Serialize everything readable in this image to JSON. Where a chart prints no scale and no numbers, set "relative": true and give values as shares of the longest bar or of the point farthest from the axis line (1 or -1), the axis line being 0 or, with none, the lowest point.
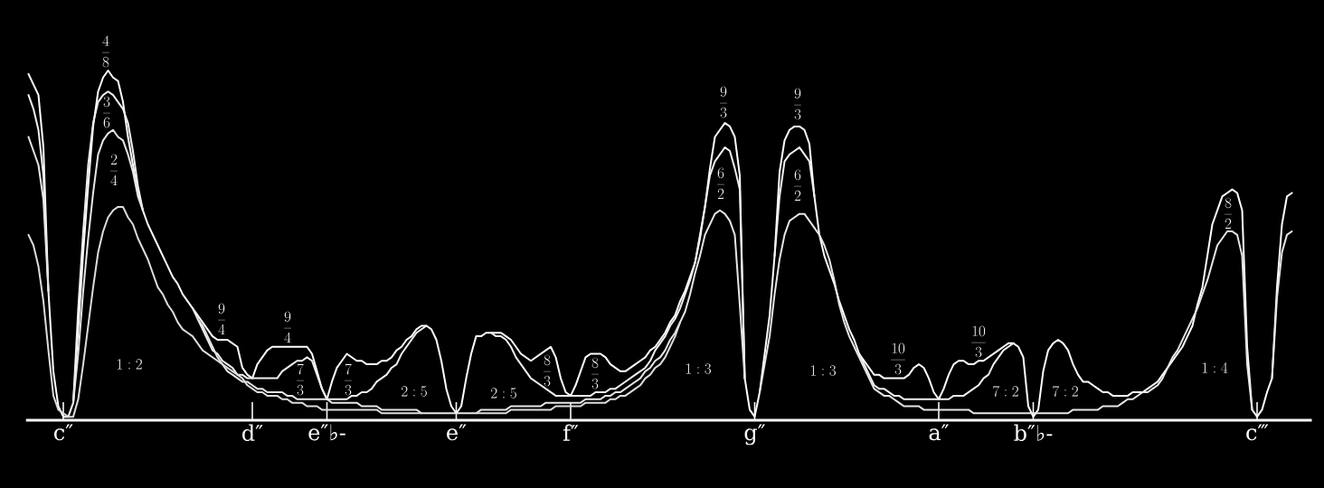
{
  "chart_data": {
    "type": "line",
    "relative": true,
    "marker": "none",
    "line_style": "solid",
    "categories": [
      null,
      null,
      null,
      null,
      null,
      null,
      null,
      "c″",
      null,
      null,
      null,
      null,
      null,
      null,
      null,
      null,
      null,
      null,
      null,
      null,
      null,
      null,
      null,
      null,
      null,
      null,
      null,
      null,
      null,
      null,
      null,
      null,
      null,
      null,
      null,
      null,
      null,
      null,
      null,
      null,
      null,
      null,
      null,
      null,
      null,
      "d″",
      null,
      null,
      null,
      null,
      null,
      null,
      null,
      null,
      null,
      null,
      null,
      null,
      null,
      null,
      "e″♭-",
      null,
      null,
      null,
      null,
      null,
      null,
      null,
      null,
      null,
      null,
      null,
      null,
      null,
      null,
      null,
      null,
      null,
      null,
      null,
      null,
      null,
      null,
      null,
      null,
      null,
      "e″",
      null,
      null,
      null,
      null,
      null,
      null,
      null,
      null,
      null,
      null,
      null,
      null,
      null,
      null,
      null,
      null,
      null,
      null,
      null,
      null,
      null,
      null,
      "f″",
      null,
      null,
      null,
      null,
      null,
      null,
      null,
      null,
      null,
      null,
      null,
      null,
      null,
      null,
      null,
      null,
      null,
      null,
      null,
      null,
      null,
      null,
      null,
      null,
      null,
      null,
      null,
      null,
      null,
      null,
      null,
      null,
      null,
      null,
      null,
      null,
      "g″",
      null,
      null,
      null,
      null,
      null,
      null,
      null,
      null,
      null,
      null,
      null,
      null,
      null,
      null,
      null,
      null,
      null,
      null,
      null,
      null,
      null,
      null,
      null,
      null,
      null,
      null,
      null,
      null,
      null,
      null,
      null,
      null,
      null,
      null,
      null,
      null,
      "a″",
      null,
      null,
      null,
      null,
      null,
      null,
      null,
      null,
      null,
      null,
      null,
      null,
      null,
      null,
      null,
      null,
      null,
      null,
      "b″♭-",
      null,
      null,
      null,
      null,
      null,
      null,
      null,
      null,
      null,
      null,
      null,
      null,
      null,
      null,
      null,
      null,
      null,
      null,
      null,
      null,
      null,
      null,
      null,
      null,
      null,
      null,
      null,
      null,
      null,
      null,
      null,
      null,
      null,
      null,
      null,
      null,
      null,
      null,
      null,
      null,
      null,
      null,
      null,
      null,
      "c‴",
      null,
      null,
      null,
      null,
      null,
      null,
      null
    ],
    "series": [
      {
        "color": "#ffffff",
        "values": [
          0.99,
          0.96,
          0.93,
          0.78,
          0.37,
          0.14,
          0.04,
          0.01,
          0.01,
          0.05,
          0.26,
          0.48,
          0.67,
          0.84,
          0.94,
          0.98,
          1.0,
          0.98,
          0.97,
          0.91,
          0.81,
          0.73,
          0.65,
          0.6,
          0.56,
          0.53,
          0.5,
          0.47,
          0.44,
          0.41,
          0.39,
          0.36,
          0.34,
          0.32,
          0.3,
          0.28,
          0.26,
          0.24,
          0.23,
          0.23,
          0.23,
          0.22,
          0.21,
          0.15,
          0.13,
          0.12,
          0.16,
          0.18,
          0.2,
          0.21,
          0.21,
          0.21,
          0.21,
          0.21,
          0.21,
          0.21,
          0.21,
          0.19,
          0.14,
          0.09,
          0.06,
          0.11,
          0.15,
          0.17,
          0.19,
          0.18,
          0.17,
          0.17,
          0.16,
          0.16,
          0.16,
          0.17,
          0.17,
          0.18,
          0.2,
          0.21,
          0.23,
          0.24,
          0.26,
          0.27,
          0.27,
          0.26,
          0.23,
          0.17,
          0.09,
          0.04,
          0.02,
          0.04,
          0.12,
          0.19,
          0.24,
          0.24,
          0.25,
          0.25,
          0.25,
          0.25,
          0.24,
          0.23,
          0.21,
          0.19,
          0.18,
          0.17,
          0.18,
          0.19,
          0.2,
          0.21,
          0.18,
          0.12,
          0.08,
          0.07,
          0.1,
          0.14,
          0.18,
          0.19,
          0.19,
          0.19,
          0.18,
          0.16,
          0.15,
          0.14,
          0.14,
          0.15,
          0.16,
          0.17,
          0.18,
          0.2,
          0.21,
          0.23,
          0.25,
          0.28,
          0.3,
          0.34,
          0.37,
          0.41,
          0.45,
          0.52,
          0.61,
          0.72,
          0.81,
          0.83,
          0.85,
          0.84,
          0.81,
          0.7,
          0.12,
          0.03,
          0.01,
          0.08,
          0.19,
          0.3,
          0.47,
          0.71,
          0.8,
          0.83,
          0.84,
          0.84,
          0.83,
          0.79,
          0.64,
          0.53,
          0.47,
          0.43,
          0.39,
          0.34,
          0.3,
          0.26,
          0.23,
          0.19,
          0.17,
          0.15,
          0.13,
          0.13,
          0.12,
          0.12,
          0.12,
          0.12,
          0.12,
          0.13,
          0.15,
          0.16,
          0.15,
          0.12,
          0.08,
          0.06,
          0.09,
          0.13,
          0.16,
          0.17,
          0.17,
          0.16,
          0.16,
          0.17,
          0.17,
          0.18,
          0.19,
          0.2,
          0.21,
          0.22,
          0.22,
          0.21,
          0.18,
          0.04,
          0.01,
          0.03,
          0.14,
          0.2,
          0.22,
          0.23,
          0.22,
          0.2,
          0.16,
          0.13,
          0.11,
          0.11,
          0.1,
          0.09,
          0.08,
          0.08,
          0.07,
          0.07,
          0.07,
          0.07,
          0.08,
          0.08,
          0.08,
          0.09,
          0.1,
          0.11,
          0.13,
          0.15,
          0.17,
          0.19,
          0.21,
          0.24,
          0.27,
          0.33,
          0.38,
          0.47,
          0.56,
          0.6,
          0.64,
          0.65,
          0.66,
          0.65,
          0.6,
          0.21,
          0.03,
          0.01,
          0.03,
          0.08,
          0.12,
          0.38,
          0.56,
          0.64,
          0.65
        ]
      },
      {
        "color": "#f0f0f0",
        "values": [
          0.93,
          0.89,
          0.83,
          0.7,
          0.37,
          null,
          null,
          null,
          null,
          0.05,
          0.32,
          0.54,
          0.73,
          0.85,
          0.91,
          0.93,
          0.94,
          0.93,
          0.91,
          0.89,
          0.85,
          0.77,
          0.67,
          0.6,
          null,
          null,
          null,
          null,
          null,
          null,
          null,
          null,
          null,
          0.32,
          0.29,
          0.26,
          0.23,
          0.2,
          0.19,
          0.17,
          0.16,
          0.15,
          0.13,
          0.13,
          0.12,
          0.12,
          0.12,
          0.12,
          0.12,
          0.12,
          0.12,
          0.14,
          0.15,
          0.16,
          0.17,
          0.17,
          0.18,
          0.17,
          0.13,
          0.09,
          0.06,
          0.06,
          0.06,
          0.06,
          0.06,
          0.07,
          0.07,
          0.08,
          0.08,
          0.09,
          0.11,
          0.12,
          0.13,
          0.15,
          0.16,
          0.19,
          0.21,
          0.23,
          0.25,
          0.26,
          0.27,
          null,
          null,
          null,
          null,
          null,
          null,
          null,
          null,
          null,
          null,
          null,
          null,
          0.25,
          0.24,
          0.24,
          0.23,
          0.21,
          0.18,
          0.16,
          0.14,
          0.12,
          0.11,
          0.1,
          0.09,
          0.08,
          0.07,
          0.07,
          0.07,
          0.07,
          0.07,
          0.07,
          0.07,
          0.07,
          0.08,
          0.08,
          0.08,
          0.09,
          0.09,
          0.1,
          0.11,
          0.12,
          0.13,
          0.14,
          0.15,
          0.17,
          0.2,
          0.22,
          0.24,
          0.27,
          0.29,
          0.32,
          0.36,
          0.4,
          0.45,
          0.53,
          0.61,
          0.7,
          0.74,
          0.76,
          0.78,
          0.77,
          0.72,
          0.66,
          0.12,
          null,
          null,
          null,
          null,
          null,
          0.47,
          0.64,
          0.74,
          0.76,
          0.77,
          0.78,
          0.76,
          0.74,
          0.64,
          null,
          null,
          null,
          null,
          null,
          null,
          null,
          null,
          0.19,
          0.16,
          0.13,
          0.1,
          0.09,
          0.09,
          0.08,
          0.07,
          0.07,
          0.06,
          0.06,
          0.06,
          0.06,
          0.06,
          0.06,
          0.06,
          0.06,
          0.06,
          0.06,
          0.07,
          0.07,
          0.07,
          0.08,
          0.09,
          0.1,
          0.12,
          0.13,
          0.16,
          0.18,
          0.2,
          0.21,
          0.22,
          null,
          null,
          null,
          null,
          null,
          null,
          null,
          null,
          null,
          null,
          null,
          null,
          null,
          null,
          null,
          null,
          null,
          null,
          null,
          null,
          null,
          null,
          null,
          null,
          null,
          null,
          null,
          null,
          null,
          null,
          null,
          null,
          null,
          null,
          null,
          null,
          null,
          null,
          null,
          null,
          null,
          null,
          null,
          null,
          null,
          null,
          null,
          null,
          null,
          null,
          null,
          null,
          null,
          null,
          null,
          null
        ]
      },
      {
        "color": "#e6e6e6",
        "values": [
          0.81,
          0.77,
          0.73,
          0.63,
          0.37,
          null,
          null,
          null,
          null,
          0.05,
          0.19,
          0.37,
          0.52,
          0.65,
          0.76,
          0.8,
          0.82,
          0.83,
          0.81,
          0.8,
          0.76,
          0.71,
          0.64,
          0.6,
          null,
          null,
          null,
          null,
          null,
          null,
          null,
          null,
          null,
          null,
          0.29,
          0.27,
          0.24,
          0.21,
          0.18,
          0.16,
          0.14,
          0.13,
          0.12,
          0.11,
          0.11,
          0.1,
          0.09,
          0.09,
          0.08,
          0.08,
          0.08,
          0.08,
          0.07,
          0.07,
          0.06,
          0.06,
          0.06,
          0.06,
          0.06,
          0.06,
          0.06,
          0.05,
          0.05,
          0.05,
          0.05,
          0.05,
          0.05,
          0.04,
          0.04,
          0.04,
          0.04,
          0.03,
          0.03,
          0.03,
          0.03,
          0.03,
          0.03,
          0.03,
          0.03,
          0.02,
          0.02,
          0.02,
          0.02,
          0.02,
          0.02,
          0.02,
          0.02,
          0.02,
          0.02,
          0.02,
          0.02,
          0.03,
          0.03,
          0.03,
          0.03,
          0.03,
          0.03,
          0.04,
          0.04,
          0.04,
          0.04,
          0.04,
          0.04,
          0.04,
          0.05,
          0.05,
          0.05,
          0.05,
          0.05,
          0.05,
          0.05,
          0.05,
          0.06,
          0.06,
          0.06,
          0.06,
          0.07,
          0.07,
          0.08,
          0.08,
          0.09,
          0.1,
          0.11,
          0.12,
          0.14,
          0.15,
          0.17,
          0.18,
          0.2,
          0.23,
          0.25,
          0.28,
          0.31,
          0.36,
          0.42,
          0.47,
          0.53,
          0.56,
          0.59,
          0.6,
          0.59,
          0.57,
          0.53,
          0.33,
          0.12,
          null,
          null,
          0.08,
          0.16,
          0.24,
          0.36,
          0.46,
          0.53,
          0.57,
          0.58,
          0.59,
          0.59,
          0.57,
          0.55,
          0.53,
          0.5,
          0.46,
          0.4,
          0.33,
          0.28,
          0.24,
          0.21,
          0.18,
          0.15,
          0.12,
          0.09,
          0.08,
          0.07,
          0.07,
          0.06,
          0.05,
          0.04,
          0.04,
          0.04,
          0.04,
          0.03,
          0.03,
          0.03,
          0.03,
          0.03,
          0.03,
          0.03,
          0.03,
          0.03,
          0.03,
          0.02,
          0.02,
          0.02,
          0.02,
          0.02,
          0.02,
          0.02,
          0.02,
          0.02,
          0.02,
          0.02,
          0.02,
          0.02,
          0.02,
          0.02,
          0.02,
          0.02,
          0.02,
          0.02,
          0.02,
          0.03,
          0.03,
          0.03,
          0.03,
          0.03,
          0.03,
          0.04,
          0.04,
          0.04,
          0.04,
          0.05,
          0.06,
          0.06,
          0.07,
          0.08,
          0.08,
          0.09,
          0.1,
          0.12,
          0.15,
          0.18,
          0.2,
          0.23,
          0.26,
          0.29,
          0.32,
          0.36,
          0.4,
          0.45,
          0.5,
          0.52,
          0.54,
          0.54,
          0.53,
          0.47,
          0.16,
          0.03,
          null,
          null,
          null,
          0.12,
          0.35,
          0.48,
          0.53,
          0.54
        ]
      },
      {
        "color": "#dcdcdc",
        "values": [
          0.53,
          0.5,
          0.44,
          0.34,
          0.2,
          0.07,
          0.03,
          0.02,
          0.01,
          0.01,
          0.06,
          0.16,
          0.27,
          0.38,
          0.48,
          0.54,
          0.58,
          0.6,
          0.61,
          0.61,
          0.58,
          0.56,
          0.52,
          0.49,
          0.46,
          0.42,
          0.38,
          0.36,
          0.33,
          0.31,
          0.28,
          0.26,
          0.25,
          0.24,
          0.22,
          0.2,
          0.19,
          0.18,
          0.17,
          0.16,
          0.15,
          0.14,
          0.13,
          0.12,
          0.1,
          0.09,
          0.08,
          0.08,
          0.07,
          0.07,
          0.07,
          0.06,
          0.06,
          0.05,
          0.05,
          0.05,
          0.04,
          0.04,
          0.04,
          0.03,
          0.03,
          0.03,
          0.03,
          0.03,
          0.03,
          0.03,
          0.03,
          0.03,
          0.03,
          0.03,
          0.03,
          0.02,
          0.02,
          0.02,
          0.02,
          0.02,
          0.02,
          0.02,
          0.02,
          0.02,
          null,
          null,
          null,
          null,
          null,
          null,
          null,
          null,
          null,
          null,
          0.02,
          0.02,
          0.02,
          0.02,
          0.02,
          0.02,
          0.02,
          0.03,
          0.03,
          0.03,
          0.03,
          0.03,
          0.03,
          0.03,
          0.03,
          0.03,
          0.04,
          0.04,
          0.04,
          0.04,
          0.04,
          0.04,
          0.05,
          0.05,
          0.05,
          0.05,
          0.05,
          0.06,
          0.06,
          0.07,
          0.07,
          0.08,
          0.09,
          0.1,
          0.12,
          0.13,
          0.15,
          0.16,
          0.18,
          0.21,
          0.24,
          0.28,
          null,
          null,
          null,
          null,
          null,
          null,
          null,
          null,
          null,
          null,
          null,
          null,
          null,
          null,
          null,
          null,
          null,
          null,
          null,
          null,
          null,
          null,
          null,
          null,
          null,
          null,
          null,
          null,
          null,
          null,
          null,
          null,
          null,
          null,
          null,
          null,
          null,
          null,
          null,
          null,
          null,
          null,
          null,
          null,
          null,
          null,
          null,
          null,
          null,
          null,
          null,
          null,
          null,
          null,
          null,
          null,
          null,
          null,
          null,
          null,
          null,
          null,
          null,
          null,
          null,
          null,
          null,
          null,
          null,
          null,
          null,
          null,
          null,
          null,
          null,
          null,
          null,
          null,
          null,
          null,
          null,
          null,
          null,
          null,
          null,
          null,
          null,
          null,
          null,
          null,
          null,
          null,
          null,
          null,
          null,
          null,
          null,
          null,
          null,
          null,
          null,
          null,
          null,
          null,
          null,
          null,
          null,
          null,
          null,
          null,
          null,
          null,
          null,
          null,
          null,
          null,
          null,
          null,
          null,
          null,
          null,
          null,
          null
        ]
      }
    ],
    "annotations": [
      "\\frac{4}{8}",
      "\\frac{3}{6}",
      "\\frac{2}{4}",
      "1:2",
      "\\frac{9}{4}",
      "\\frac{9}{4}",
      "\\frac{7}{3}",
      "\\frac{7}{3}",
      "2:5",
      "2:5",
      "\\frac{8}{3}",
      "\\frac{8}{3}",
      "1:3",
      "\\frac{9}{3}",
      "\\frac{6}{2}",
      "\\frac{9}{3}",
      "\\frac{6}{2}",
      "1:3",
      "\\frac{10}{3}",
      "\\frac{10}{3}",
      "7:2",
      "7:2",
      "1:4",
      "\\frac{8}{2}"
    ]
  }
}
